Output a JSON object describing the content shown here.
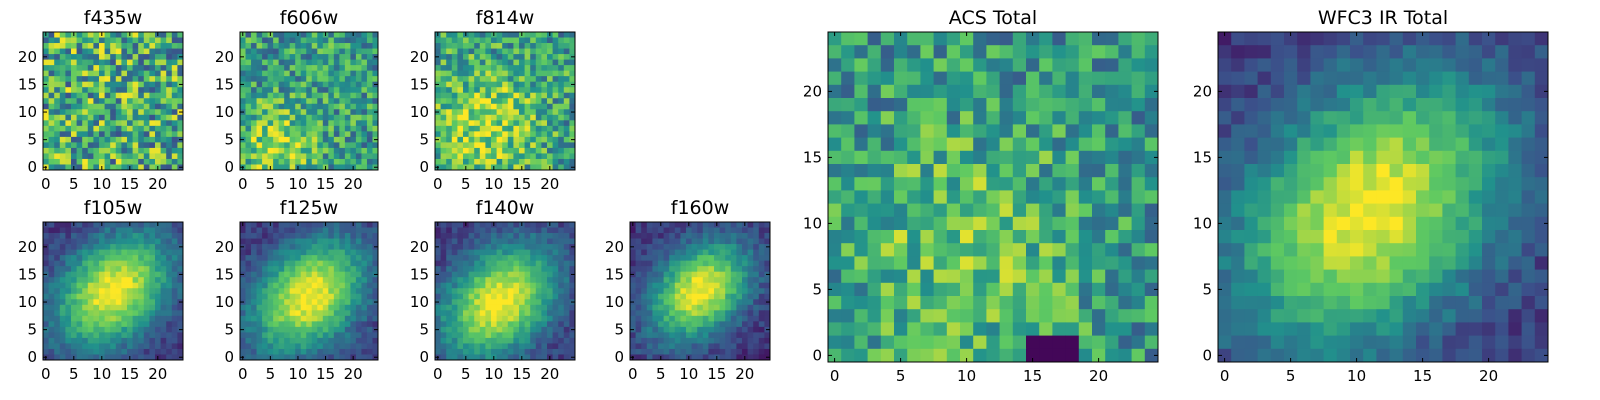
{
  "chart_data": [
    {
      "type": "heatmap",
      "title": "f435w",
      "x_ticks": [
        0,
        5,
        10,
        15,
        20
      ],
      "y_ticks": [
        0,
        5,
        10,
        15,
        20
      ],
      "xlim": [
        -0.5,
        24.5
      ],
      "ylim": [
        -0.5,
        24.5
      ],
      "grid": false,
      "description_of_values": "25x25 pixel cutout, noisy field, no clear structure"
    },
    {
      "type": "heatmap",
      "title": "f606w",
      "x_ticks": [
        0,
        5,
        10,
        15,
        20
      ],
      "y_ticks": [
        0,
        5,
        10,
        15,
        20
      ],
      "xlim": [
        -0.5,
        24.5
      ],
      "ylim": [
        -0.5,
        24.5
      ],
      "grid": false
    },
    {
      "type": "heatmap",
      "title": "f814w",
      "x_ticks": [
        0,
        5,
        10,
        15,
        20
      ],
      "y_ticks": [
        0,
        5,
        10,
        15,
        20
      ],
      "xlim": [
        -0.5,
        24.5
      ],
      "ylim": [
        -0.5,
        24.5
      ],
      "grid": false
    },
    {
      "type": "heatmap",
      "title": "f105w",
      "x_ticks": [
        0,
        5,
        10,
        15,
        20
      ],
      "y_ticks": [
        0,
        5,
        10,
        15,
        20
      ],
      "xlim": [
        -0.5,
        24.5
      ],
      "ylim": [
        -0.5,
        24.5
      ],
      "grid": false
    },
    {
      "type": "heatmap",
      "title": "f125w",
      "x_ticks": [
        0,
        5,
        10,
        15,
        20
      ],
      "y_ticks": [
        0,
        5,
        10,
        15,
        20
      ],
      "xlim": [
        -0.5,
        24.5
      ],
      "ylim": [
        -0.5,
        24.5
      ],
      "grid": false
    },
    {
      "type": "heatmap",
      "title": "f140w",
      "x_ticks": [
        0,
        5,
        10,
        15,
        20
      ],
      "y_ticks": [
        0,
        5,
        10,
        15,
        20
      ],
      "xlim": [
        -0.5,
        24.5
      ],
      "ylim": [
        -0.5,
        24.5
      ],
      "grid": false
    },
    {
      "type": "heatmap",
      "title": "f160w",
      "x_ticks": [
        0,
        5,
        10,
        15,
        20
      ],
      "y_ticks": [
        0,
        5,
        10,
        15,
        20
      ],
      "xlim": [
        -0.5,
        24.5
      ],
      "ylim": [
        -0.5,
        24.5
      ],
      "grid": false
    },
    {
      "type": "heatmap",
      "title": "ACS Total",
      "x_ticks": [
        0,
        5,
        10,
        15,
        20
      ],
      "y_ticks": [
        0,
        5,
        10,
        15,
        20
      ],
      "xlim": [
        -0.5,
        24.5
      ],
      "ylim": [
        -0.5,
        24.5
      ],
      "grid": false
    },
    {
      "type": "heatmap",
      "title": "WFC3 IR Total",
      "x_ticks": [
        0,
        5,
        10,
        15,
        20
      ],
      "y_ticks": [
        0,
        5,
        10,
        15,
        20
      ],
      "xlim": [
        -0.5,
        24.5
      ],
      "ylim": [
        -0.5,
        24.5
      ],
      "grid": false
    }
  ],
  "colormap": [
    "#440154",
    "#3b528b",
    "#21918c",
    "#5ec962",
    "#fde725"
  ]
}
